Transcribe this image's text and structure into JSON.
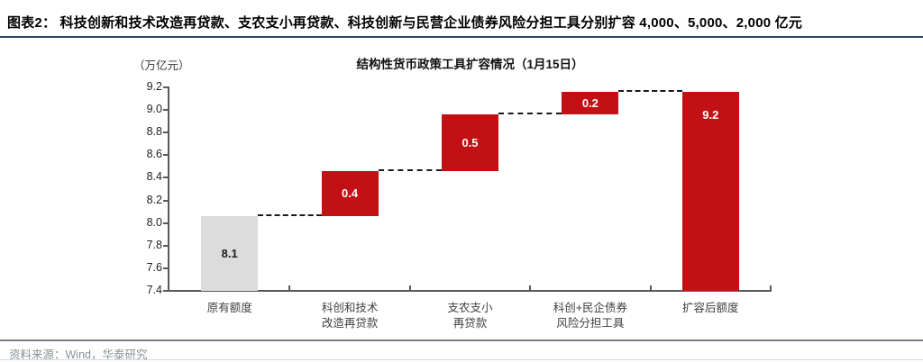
{
  "header": {
    "title": "图表2：  科技创新和技术改造再贷款、支农支小再贷款、科技创新与民营企业债券风险分担工具分别扩容 4,000、5,000、2,000 亿元"
  },
  "footer": {
    "source": "资料来源：Wind，华泰研究"
  },
  "colors": {
    "header_rule": "#2c4170",
    "footer_rule": "#767d85",
    "footer_bottom_rule": "#d5dade",
    "axis": "#595959",
    "increase_bar": "#c21014",
    "initial_bar": "#dcdcdc",
    "connector": "#1a1a1a",
    "bar_label_light": "#ffffff",
    "bar_label_dark": "#1a1a1a"
  },
  "chart_data": {
    "type": "bar",
    "subtype": "waterfall",
    "title": "结构性货币政策工具扩容情况（1月15日）",
    "unit_label": "（万亿元）",
    "ylabel": "万亿元",
    "ylim": [
      7.4,
      9.2
    ],
    "y_ticks": [
      9.2,
      9.0,
      8.8,
      8.6,
      8.4,
      8.2,
      8.0,
      7.8,
      7.6,
      7.4
    ],
    "grid": false,
    "legend": "none",
    "bars": [
      {
        "category_lines": [
          "原有额度"
        ],
        "value_label": "8.1",
        "base": 7.4,
        "top": 8.06,
        "role": "initial",
        "label_pos": "center"
      },
      {
        "category_lines": [
          "科创和技术",
          "改造再贷款"
        ],
        "value_label": "0.4",
        "base": 8.06,
        "top": 8.46,
        "role": "increase",
        "label_pos": "center"
      },
      {
        "category_lines": [
          "支农支小",
          "再贷款"
        ],
        "value_label": "0.5",
        "base": 8.46,
        "top": 8.96,
        "role": "increase",
        "label_pos": "center"
      },
      {
        "category_lines": [
          "科创+民企债券",
          "风险分担工具"
        ],
        "value_label": "0.2",
        "base": 8.96,
        "top": 9.16,
        "role": "increase",
        "label_pos": "center"
      },
      {
        "category_lines": [
          "扩容后额度"
        ],
        "value_label": "9.2",
        "base": 7.4,
        "top": 9.16,
        "role": "increase",
        "label_pos": "top"
      }
    ],
    "connectors": "dashed between consecutive bar tops"
  }
}
